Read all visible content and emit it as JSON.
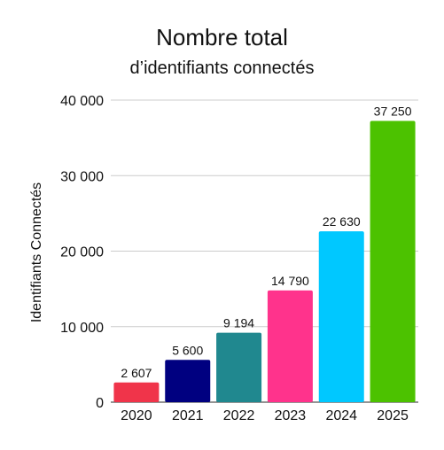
{
  "chart_data": {
    "type": "bar",
    "title": "Nombre total",
    "subtitle": "d’identifiants connectés",
    "xlabel": "",
    "ylabel": "Identifiants Connectés",
    "categories": [
      "2020",
      "2021",
      "2022",
      "2023",
      "2024",
      "2025"
    ],
    "values": [
      2607,
      5600,
      9194,
      14790,
      22630,
      37250
    ],
    "value_labels": [
      "2 607",
      "5 600",
      "9 194",
      "14 790",
      "22 630",
      "37 250"
    ],
    "colors": [
      "#f0344a",
      "#000080",
      "#20888f",
      "#ff338c",
      "#00c8ff",
      "#4cc200"
    ],
    "ylim": [
      0,
      40000
    ],
    "yticks": [
      0,
      10000,
      20000,
      30000,
      40000
    ],
    "ytick_labels": [
      "0",
      "10 000",
      "20 000",
      "30 000",
      "40 000"
    ],
    "grid": true,
    "legend": "none"
  }
}
